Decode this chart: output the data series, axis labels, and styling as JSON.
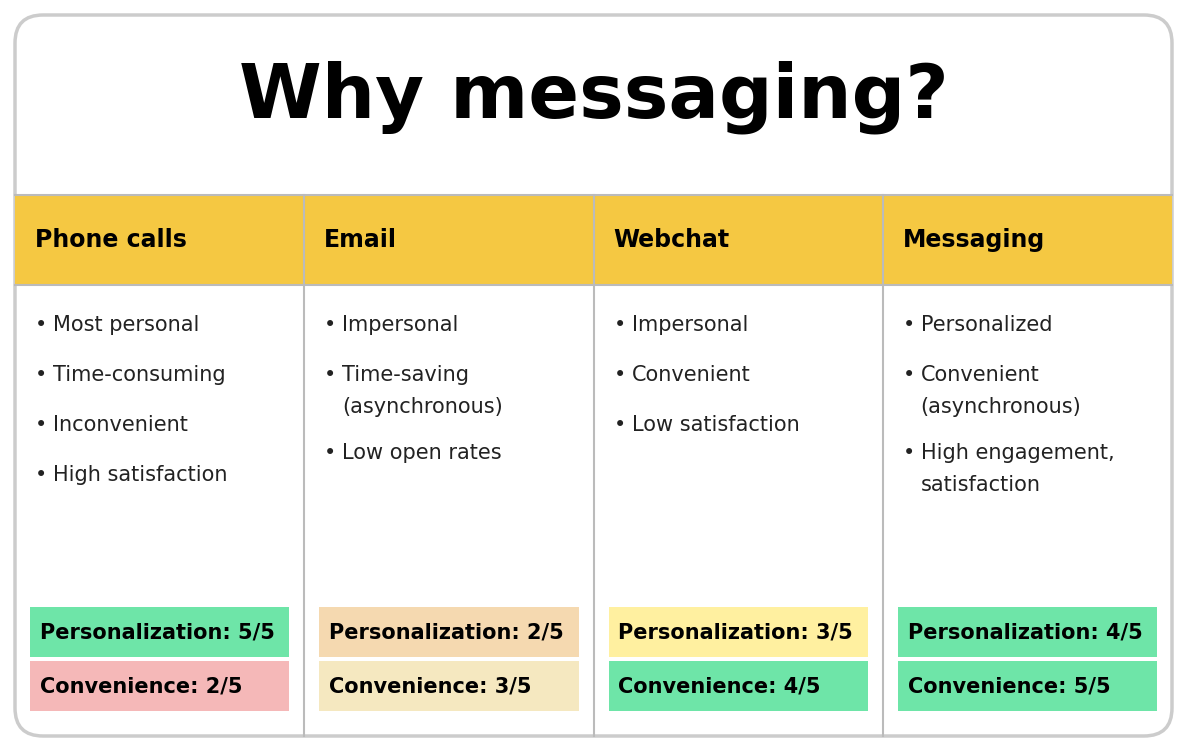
{
  "title": "Why messaging?",
  "title_fontsize": 54,
  "background_color": "#ffffff",
  "header_bg_color": "#F5C842",
  "header_fontsize": 17,
  "bullet_fontsize": 15,
  "score_fontsize": 15,
  "columns": [
    "Phone calls",
    "Email",
    "Webchat",
    "Messaging"
  ],
  "bullets": [
    [
      "Most personal",
      "Time-consuming",
      "Inconvenient",
      "High satisfaction"
    ],
    [
      "Impersonal",
      "Time-saving\n(asynchronous)",
      "Low open rates"
    ],
    [
      "Impersonal",
      "Convenient",
      "Low satisfaction"
    ],
    [
      "Personalized",
      "Convenient\n(asynchronous)",
      "High engagement,\nsatisfaction"
    ]
  ],
  "scores": [
    {
      "p_label": "Personalization: 5/5",
      "c_label": "Convenience: 2/5",
      "p_bg": "#6EE5A8",
      "c_bg": "#F5B8B8"
    },
    {
      "p_label": "Personalization: 2/5",
      "c_label": "Convenience: 3/5",
      "p_bg": "#F5D9B0",
      "c_bg": "#F5E8C0"
    },
    {
      "p_label": "Personalization: 3/5",
      "c_label": "Convenience: 4/5",
      "p_bg": "#FFF0A0",
      "c_bg": "#6EE5A8"
    },
    {
      "p_label": "Personalization: 4/5",
      "c_label": "Convenience: 5/5",
      "p_bg": "#6EE5A8",
      "c_bg": "#6EE5A8"
    }
  ],
  "divider_color": "#bbbbbb",
  "border_color": "#cccccc"
}
